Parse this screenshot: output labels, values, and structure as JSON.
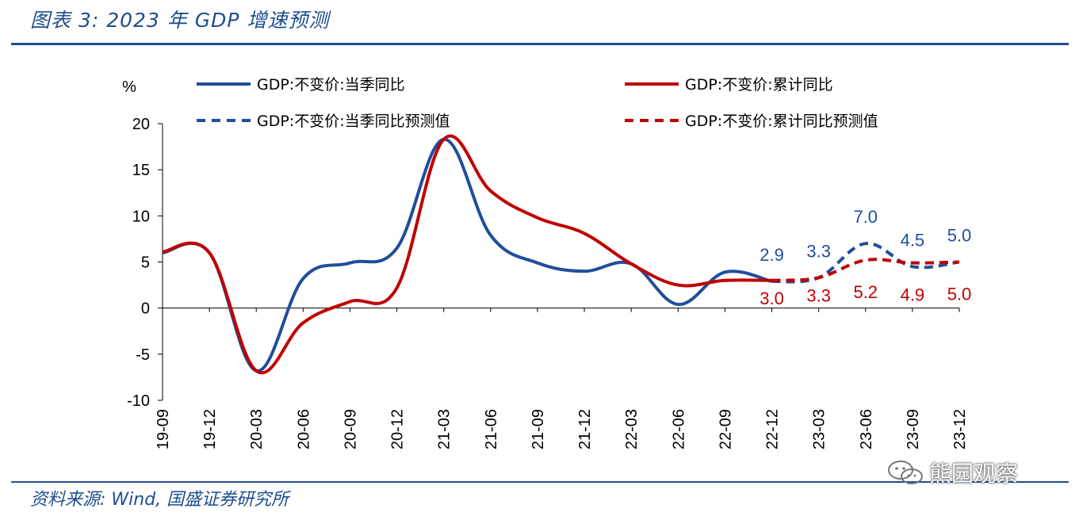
{
  "figure": {
    "title": "图表 3:  2023 年 GDP 增速预测",
    "source": "资料来源:  Wind,  国盛证券研究所",
    "watermark": "熊园观察"
  },
  "colors": {
    "blue": "#1f4e9c",
    "red": "#c00000",
    "rule": "#1f4e8c"
  },
  "chart_data": {
    "type": "line",
    "ylabel": "%",
    "ylim": [
      -10,
      20
    ],
    "yticks": [
      "20",
      "15",
      "10",
      "5",
      "0",
      "-5",
      "-10"
    ],
    "categories": [
      "19-09",
      "19-12",
      "20-03",
      "20-06",
      "20-09",
      "20-12",
      "21-03",
      "21-06",
      "21-09",
      "21-12",
      "22-03",
      "22-06",
      "22-09",
      "22-12",
      "23-03",
      "23-06",
      "23-09",
      "23-12"
    ],
    "grid": false,
    "legend_position": "top",
    "series": [
      {
        "name": "GDP:不变价:当季同比",
        "color": "#1f4e9c",
        "dash": false,
        "values": [
          6.0,
          6.0,
          -6.8,
          3.2,
          4.9,
          6.5,
          18.3,
          7.9,
          4.9,
          4.0,
          4.8,
          0.4,
          3.9,
          2.9,
          null,
          null,
          null,
          null
        ]
      },
      {
        "name": "GDP:不变价:累计同比",
        "color": "#c00000",
        "dash": false,
        "values": [
          6.1,
          6.0,
          -6.8,
          -1.6,
          0.7,
          2.2,
          18.3,
          12.7,
          9.8,
          8.1,
          4.8,
          2.5,
          3.0,
          3.0,
          null,
          null,
          null,
          null
        ]
      },
      {
        "name": "GDP:不变价:当季同比预测值",
        "color": "#1f4e9c",
        "dash": true,
        "values": [
          null,
          null,
          null,
          null,
          null,
          null,
          null,
          null,
          null,
          null,
          null,
          null,
          null,
          2.9,
          3.3,
          7.0,
          4.5,
          5.0
        ]
      },
      {
        "name": "GDP:不变价:累计同比预测值",
        "color": "#c00000",
        "dash": true,
        "values": [
          null,
          null,
          null,
          null,
          null,
          null,
          null,
          null,
          null,
          null,
          null,
          null,
          null,
          3.0,
          3.3,
          5.2,
          4.9,
          5.0
        ]
      }
    ],
    "data_labels": {
      "blue": [
        "2.9",
        "3.3",
        "7.0",
        "4.5",
        "5.0"
      ],
      "red": [
        "3.0",
        "3.3",
        "5.2",
        "4.9",
        "5.0"
      ]
    }
  }
}
